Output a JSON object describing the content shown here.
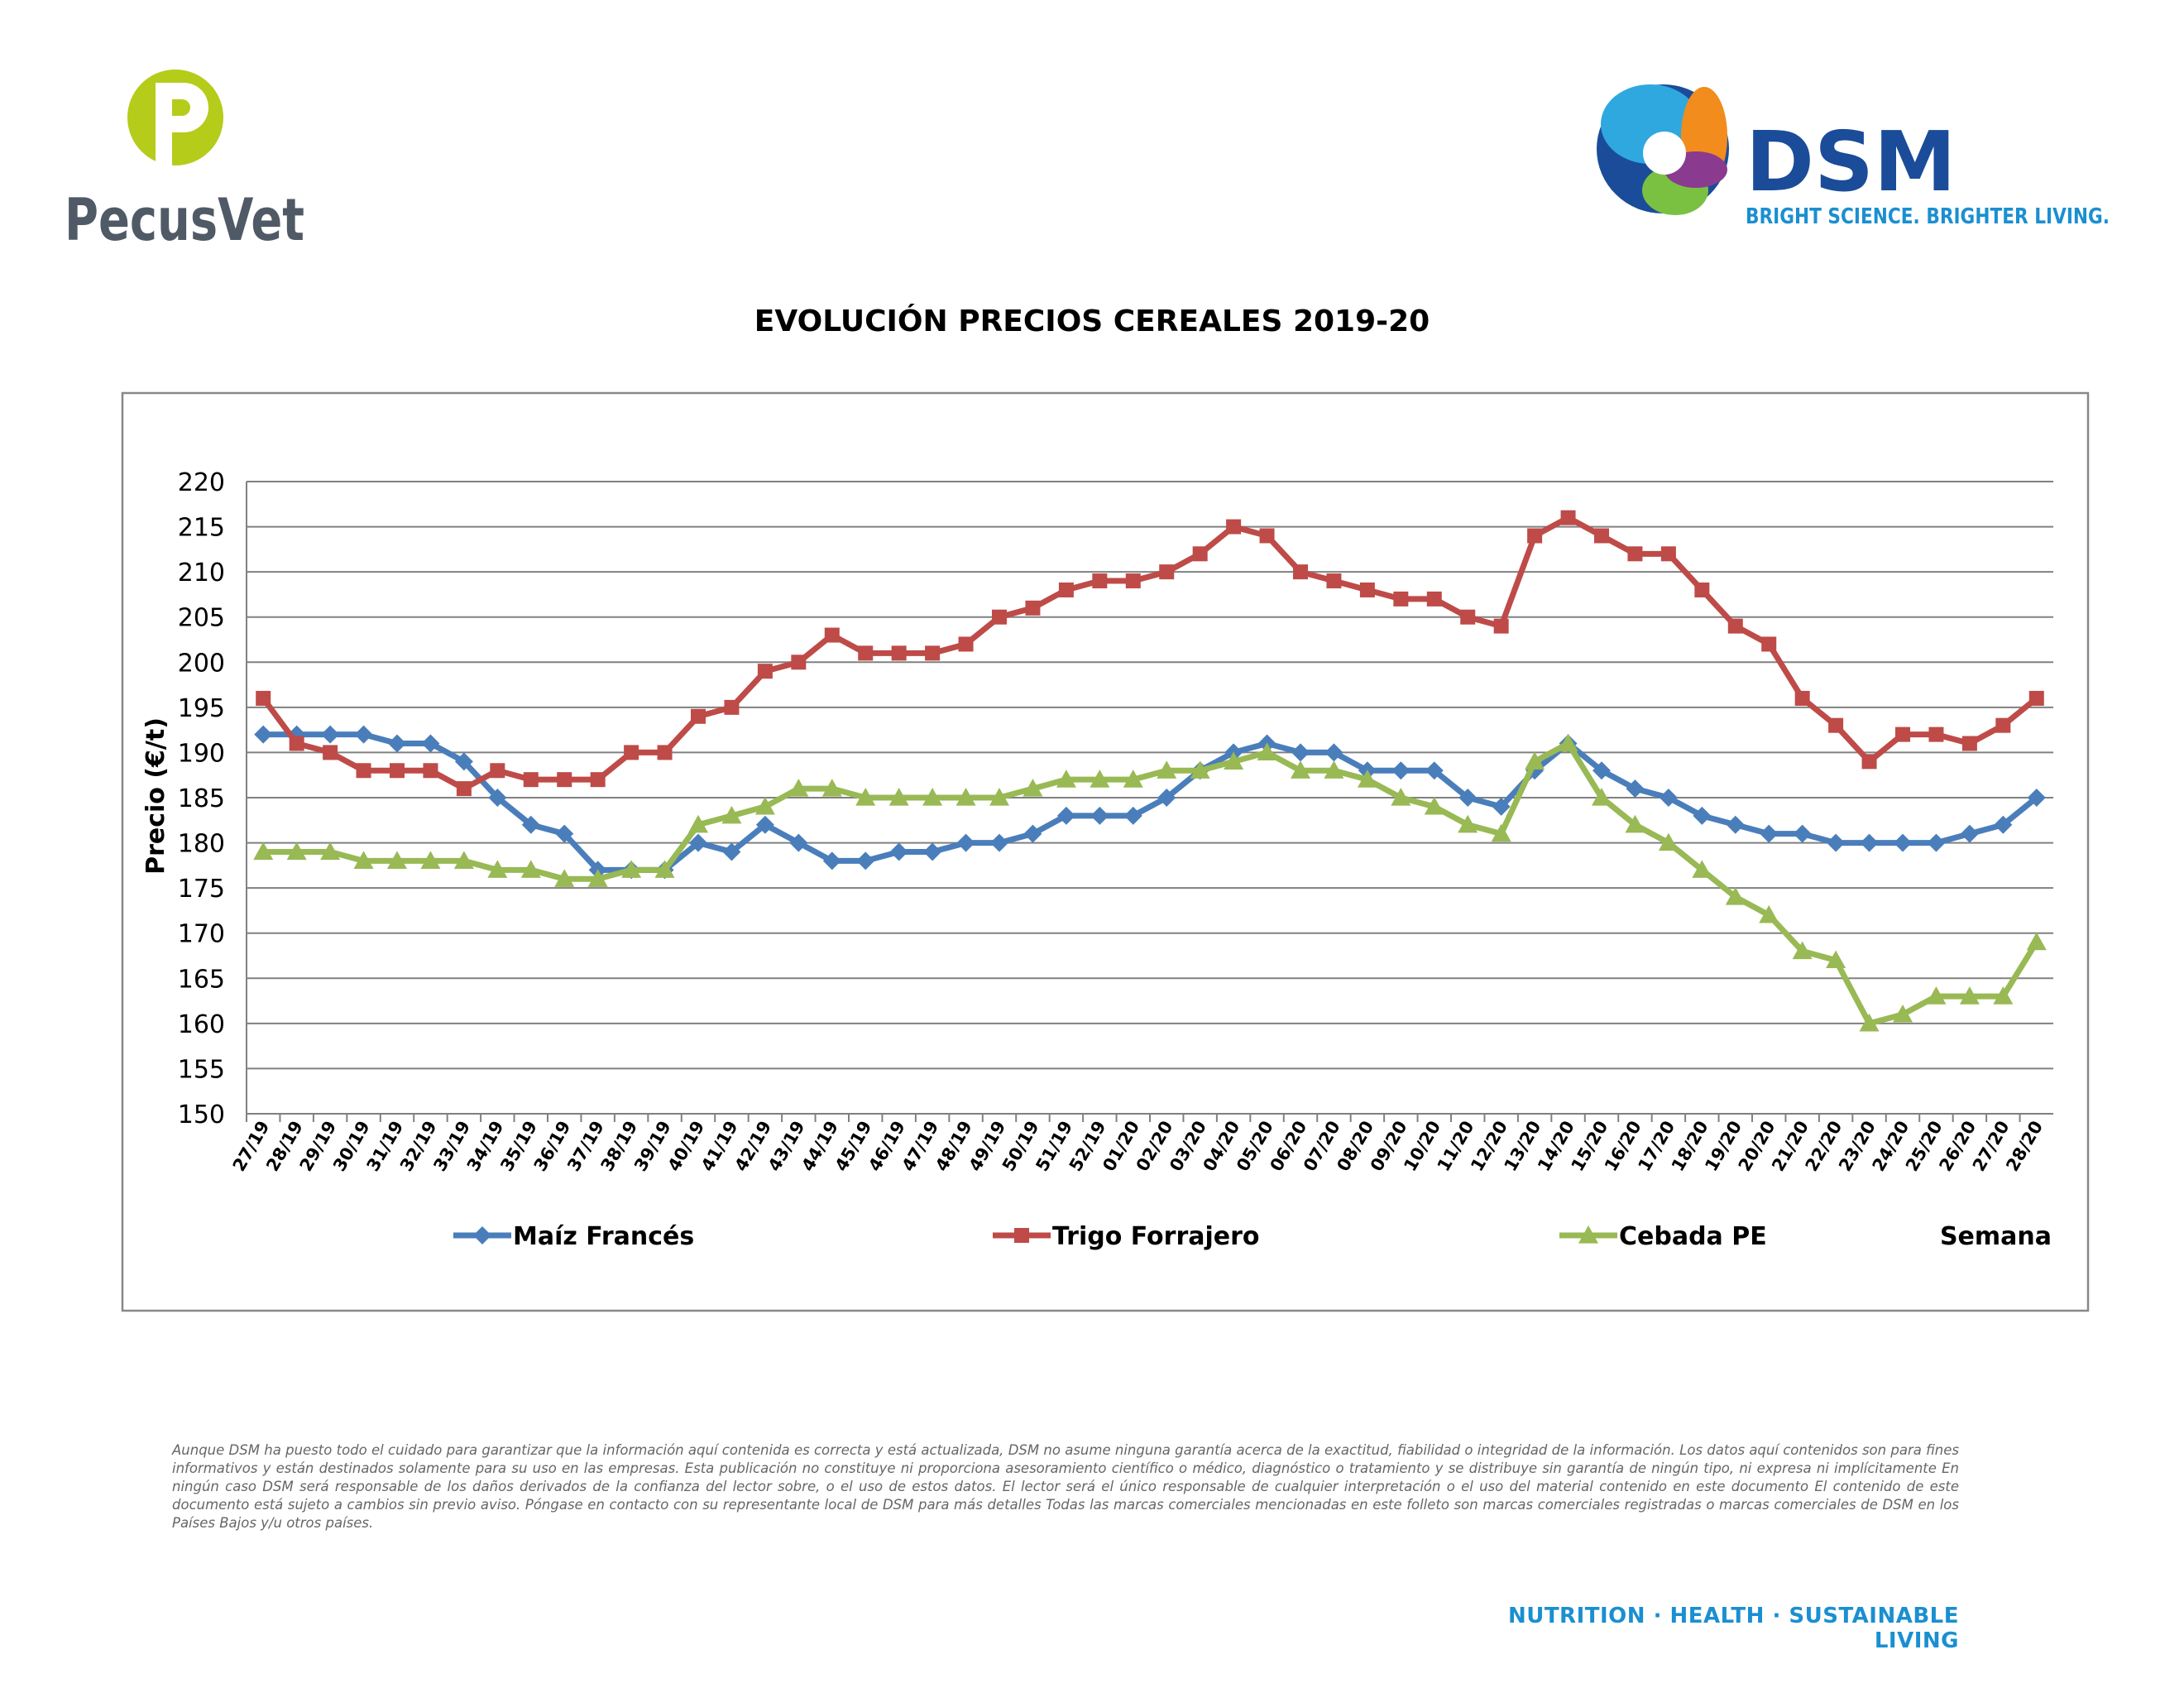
{
  "brand": {
    "left_logo_text": "PecusVet",
    "right_logo_text": "DSM",
    "right_logo_tagline": "BRIGHT SCIENCE. BRIGHTER LIVING.",
    "colors": {
      "pecus_green": "#b5cc1a",
      "pecus_gray": "#505a66",
      "dsm_blue": "#1b4c9a",
      "dsm_tagline": "#1a8fd1"
    }
  },
  "chart_data": {
    "type": "line",
    "title": "EVOLUCIÓN PRECIOS CEREALES 2019-20",
    "ylabel": "Precio (€/t)",
    "xlabel": "Semana",
    "ylim": [
      150,
      220
    ],
    "yticks": [
      150,
      155,
      160,
      165,
      170,
      175,
      180,
      185,
      190,
      195,
      200,
      205,
      210,
      215,
      220
    ],
    "grid": true,
    "legend_position": "bottom",
    "categories": [
      "27/19",
      "28/19",
      "29/19",
      "30/19",
      "31/19",
      "32/19",
      "33/19",
      "34/19",
      "35/19",
      "36/19",
      "37/19",
      "38/19",
      "39/19",
      "40/19",
      "41/19",
      "42/19",
      "43/19",
      "44/19",
      "45/19",
      "46/19",
      "47/19",
      "48/19",
      "49/19",
      "50/19",
      "51/19",
      "52/19",
      "01/20",
      "02/20",
      "03/20",
      "04/20",
      "05/20",
      "06/20",
      "07/20",
      "08/20",
      "09/20",
      "10/20",
      "11/20",
      "12/20",
      "13/20",
      "14/20",
      "15/20",
      "16/20",
      "17/20",
      "18/20",
      "19/20",
      "20/20",
      "21/20",
      "22/20",
      "23/20",
      "24/20",
      "25/20",
      "26/20",
      "27/20",
      "28/20"
    ],
    "series": [
      {
        "name": "Maíz Francés",
        "color": "#4a7ebb",
        "marker": "diamond",
        "values": [
          192,
          192,
          192,
          192,
          191,
          191,
          189,
          185,
          182,
          181,
          177,
          177,
          177,
          180,
          179,
          182,
          180,
          178,
          178,
          179,
          179,
          180,
          180,
          181,
          183,
          183,
          183,
          185,
          188,
          190,
          191,
          190,
          190,
          188,
          188,
          188,
          185,
          184,
          188,
          191,
          188,
          186,
          185,
          183,
          182,
          181,
          181,
          180,
          180,
          180,
          180,
          181,
          182,
          185
        ]
      },
      {
        "name": "Trigo Forrajero",
        "color": "#be4b48",
        "marker": "square",
        "values": [
          196,
          191,
          190,
          188,
          188,
          188,
          186,
          188,
          187,
          187,
          187,
          190,
          190,
          194,
          195,
          199,
          200,
          203,
          201,
          201,
          201,
          202,
          205,
          206,
          208,
          209,
          209,
          210,
          212,
          215,
          214,
          210,
          209,
          208,
          207,
          207,
          205,
          204,
          214,
          216,
          214,
          212,
          212,
          208,
          204,
          202,
          196,
          193,
          189,
          192,
          192,
          191,
          193,
          196
        ]
      },
      {
        "name": "Cebada PE",
        "color": "#98b954",
        "marker": "triangle",
        "values": [
          179,
          179,
          179,
          178,
          178,
          178,
          178,
          177,
          177,
          176,
          176,
          177,
          177,
          182,
          183,
          184,
          186,
          186,
          185,
          185,
          185,
          185,
          185,
          186,
          187,
          187,
          187,
          188,
          188,
          189,
          190,
          188,
          188,
          187,
          185,
          184,
          182,
          181,
          189,
          191,
          185,
          182,
          180,
          177,
          174,
          172,
          168,
          167,
          160,
          161,
          163,
          163,
          163,
          169
        ]
      }
    ]
  },
  "disclaimer": "Aunque DSM ha puesto todo el cuidado para garantizar que la información aquí contenida es correcta y está actualizada, DSM no asume ninguna garantía acerca de la exactitud, fiabilidad o integridad de la información. Los datos aquí contenidos son para fines informativos y están destinados solamente para su uso en las empresas. Esta publicación no constituye ni proporciona asesoramiento científico o médico, diagnóstico o tratamiento y se distribuye sin garantía de ningún tipo, ni expresa ni implícitamente En ningún caso DSM será responsable de los daños derivados de la confianza del lector sobre, o el uso de estos datos. El lector será el único responsable de cualquier interpretación o el uso del material contenido en este documento El contenido de este documento está sujeto a cambios sin previo aviso. Póngase en contacto con su representante local de DSM para más detalles Todas las marcas comerciales mencionadas en este folleto son marcas comerciales registradas o marcas comerciales de DSM en los Países Bajos y/u otros países.",
  "footer_tagline": "NUTRITION · HEALTH · SUSTAINABLE LIVING"
}
